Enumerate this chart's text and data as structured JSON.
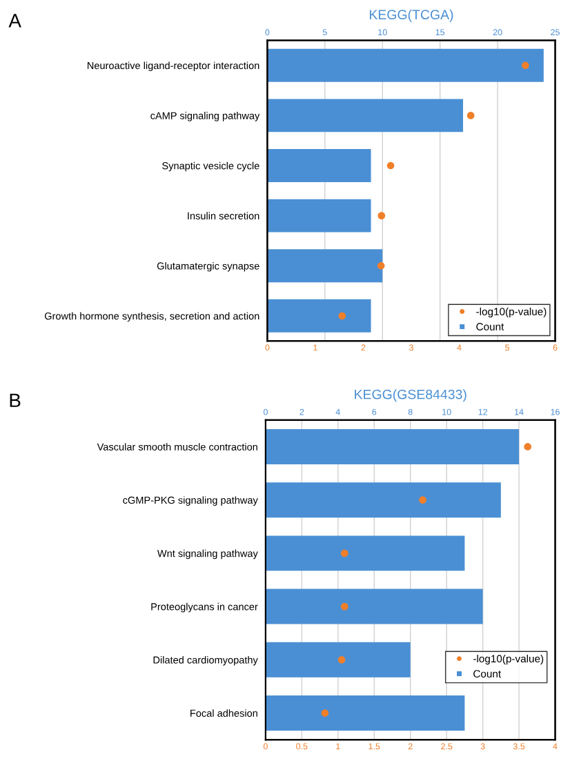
{
  "chart_data": [
    {
      "type": "bar",
      "orientation": "horizontal",
      "title": "KEGG(TCGA)",
      "annotations": [
        "A"
      ],
      "categories": [
        "Neuroactive ligand-receptor interaction",
        "cAMP signaling pathway",
        "Synaptic vesicle cycle",
        "Insulin secretion",
        "Glutamatergic synapse",
        "Growth hormone synthesis, secretion and action"
      ],
      "series": [
        {
          "name": "-log10(p-value)",
          "type": "scatter",
          "color": "#f07f2a",
          "values": [
            5.38,
            4.24,
            2.57,
            2.38,
            2.37,
            1.56
          ]
        },
        {
          "name": "Count",
          "axis": "x2",
          "color": "#4a8fd4",
          "values": [
            24,
            17,
            9,
            9,
            10,
            9
          ]
        }
      ],
      "xlim": [
        0,
        6
      ],
      "xticks": [
        0,
        1,
        2,
        3,
        4,
        5,
        6
      ],
      "x2lim": [
        0,
        25
      ],
      "x2ticks": [
        0,
        5,
        10,
        15,
        20,
        25
      ],
      "grid": "x2",
      "legend": "bottom right",
      "marker": "circle"
    },
    {
      "type": "bar",
      "orientation": "horizontal",
      "title": "KEGG(GSE84433)",
      "annotations": [
        "B"
      ],
      "categories": [
        "Vascular smooth muscle contraction",
        "cGMP-PKG signaling pathway",
        "Wnt signaling pathway",
        "Proteoglycans in cancer",
        "Dilated cardiomyopathy",
        "Focal adhesion"
      ],
      "series": [
        {
          "name": "-log10(p-value)",
          "type": "scatter",
          "color": "#f07f2a",
          "values": [
            3.62,
            2.17,
            1.09,
            1.09,
            1.05,
            0.82
          ]
        },
        {
          "name": "Count",
          "axis": "x2",
          "color": "#4a8fd4",
          "values": [
            14,
            13,
            11,
            12,
            8,
            11
          ]
        }
      ],
      "xlim": [
        0,
        4
      ],
      "xticks": [
        0,
        0.5,
        1,
        1.5,
        2,
        2.5,
        3,
        3.5,
        4
      ],
      "x2lim": [
        0,
        16
      ],
      "x2ticks": [
        0,
        2,
        4,
        6,
        8,
        10,
        12,
        14,
        16
      ],
      "grid": "x2",
      "legend": "right",
      "marker": "circle"
    }
  ]
}
